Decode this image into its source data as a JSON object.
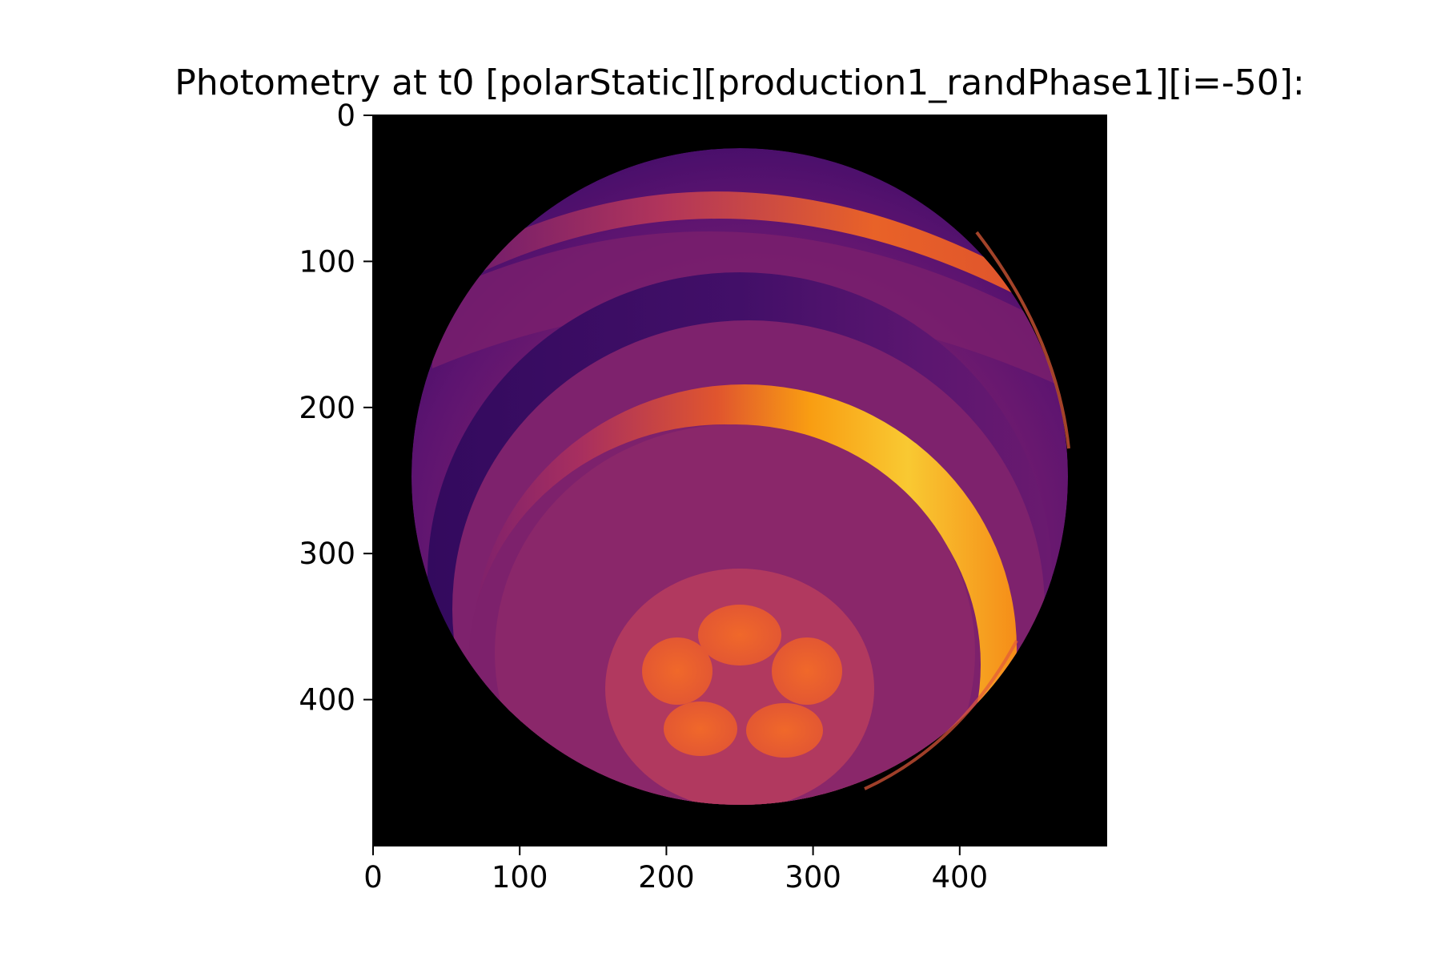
{
  "chart_data": {
    "type": "heatmap",
    "title": "Photometry at t0 [polarStatic][production1_randPhase1][i=-50]:",
    "xlabel": "",
    "ylabel": "",
    "colormap": "inferno",
    "background": "#000000",
    "xlim": [
      0,
      500
    ],
    "ylim": [
      500,
      0
    ],
    "x_ticks": [
      0,
      100,
      200,
      300,
      400
    ],
    "y_ticks": [
      0,
      100,
      200,
      300,
      400
    ],
    "x_tick_labels": [
      "0",
      "100",
      "200",
      "300",
      "400"
    ],
    "y_tick_labels": [
      "0",
      "100",
      "200",
      "300",
      "400"
    ],
    "y_inverted": true,
    "grid": false
  }
}
